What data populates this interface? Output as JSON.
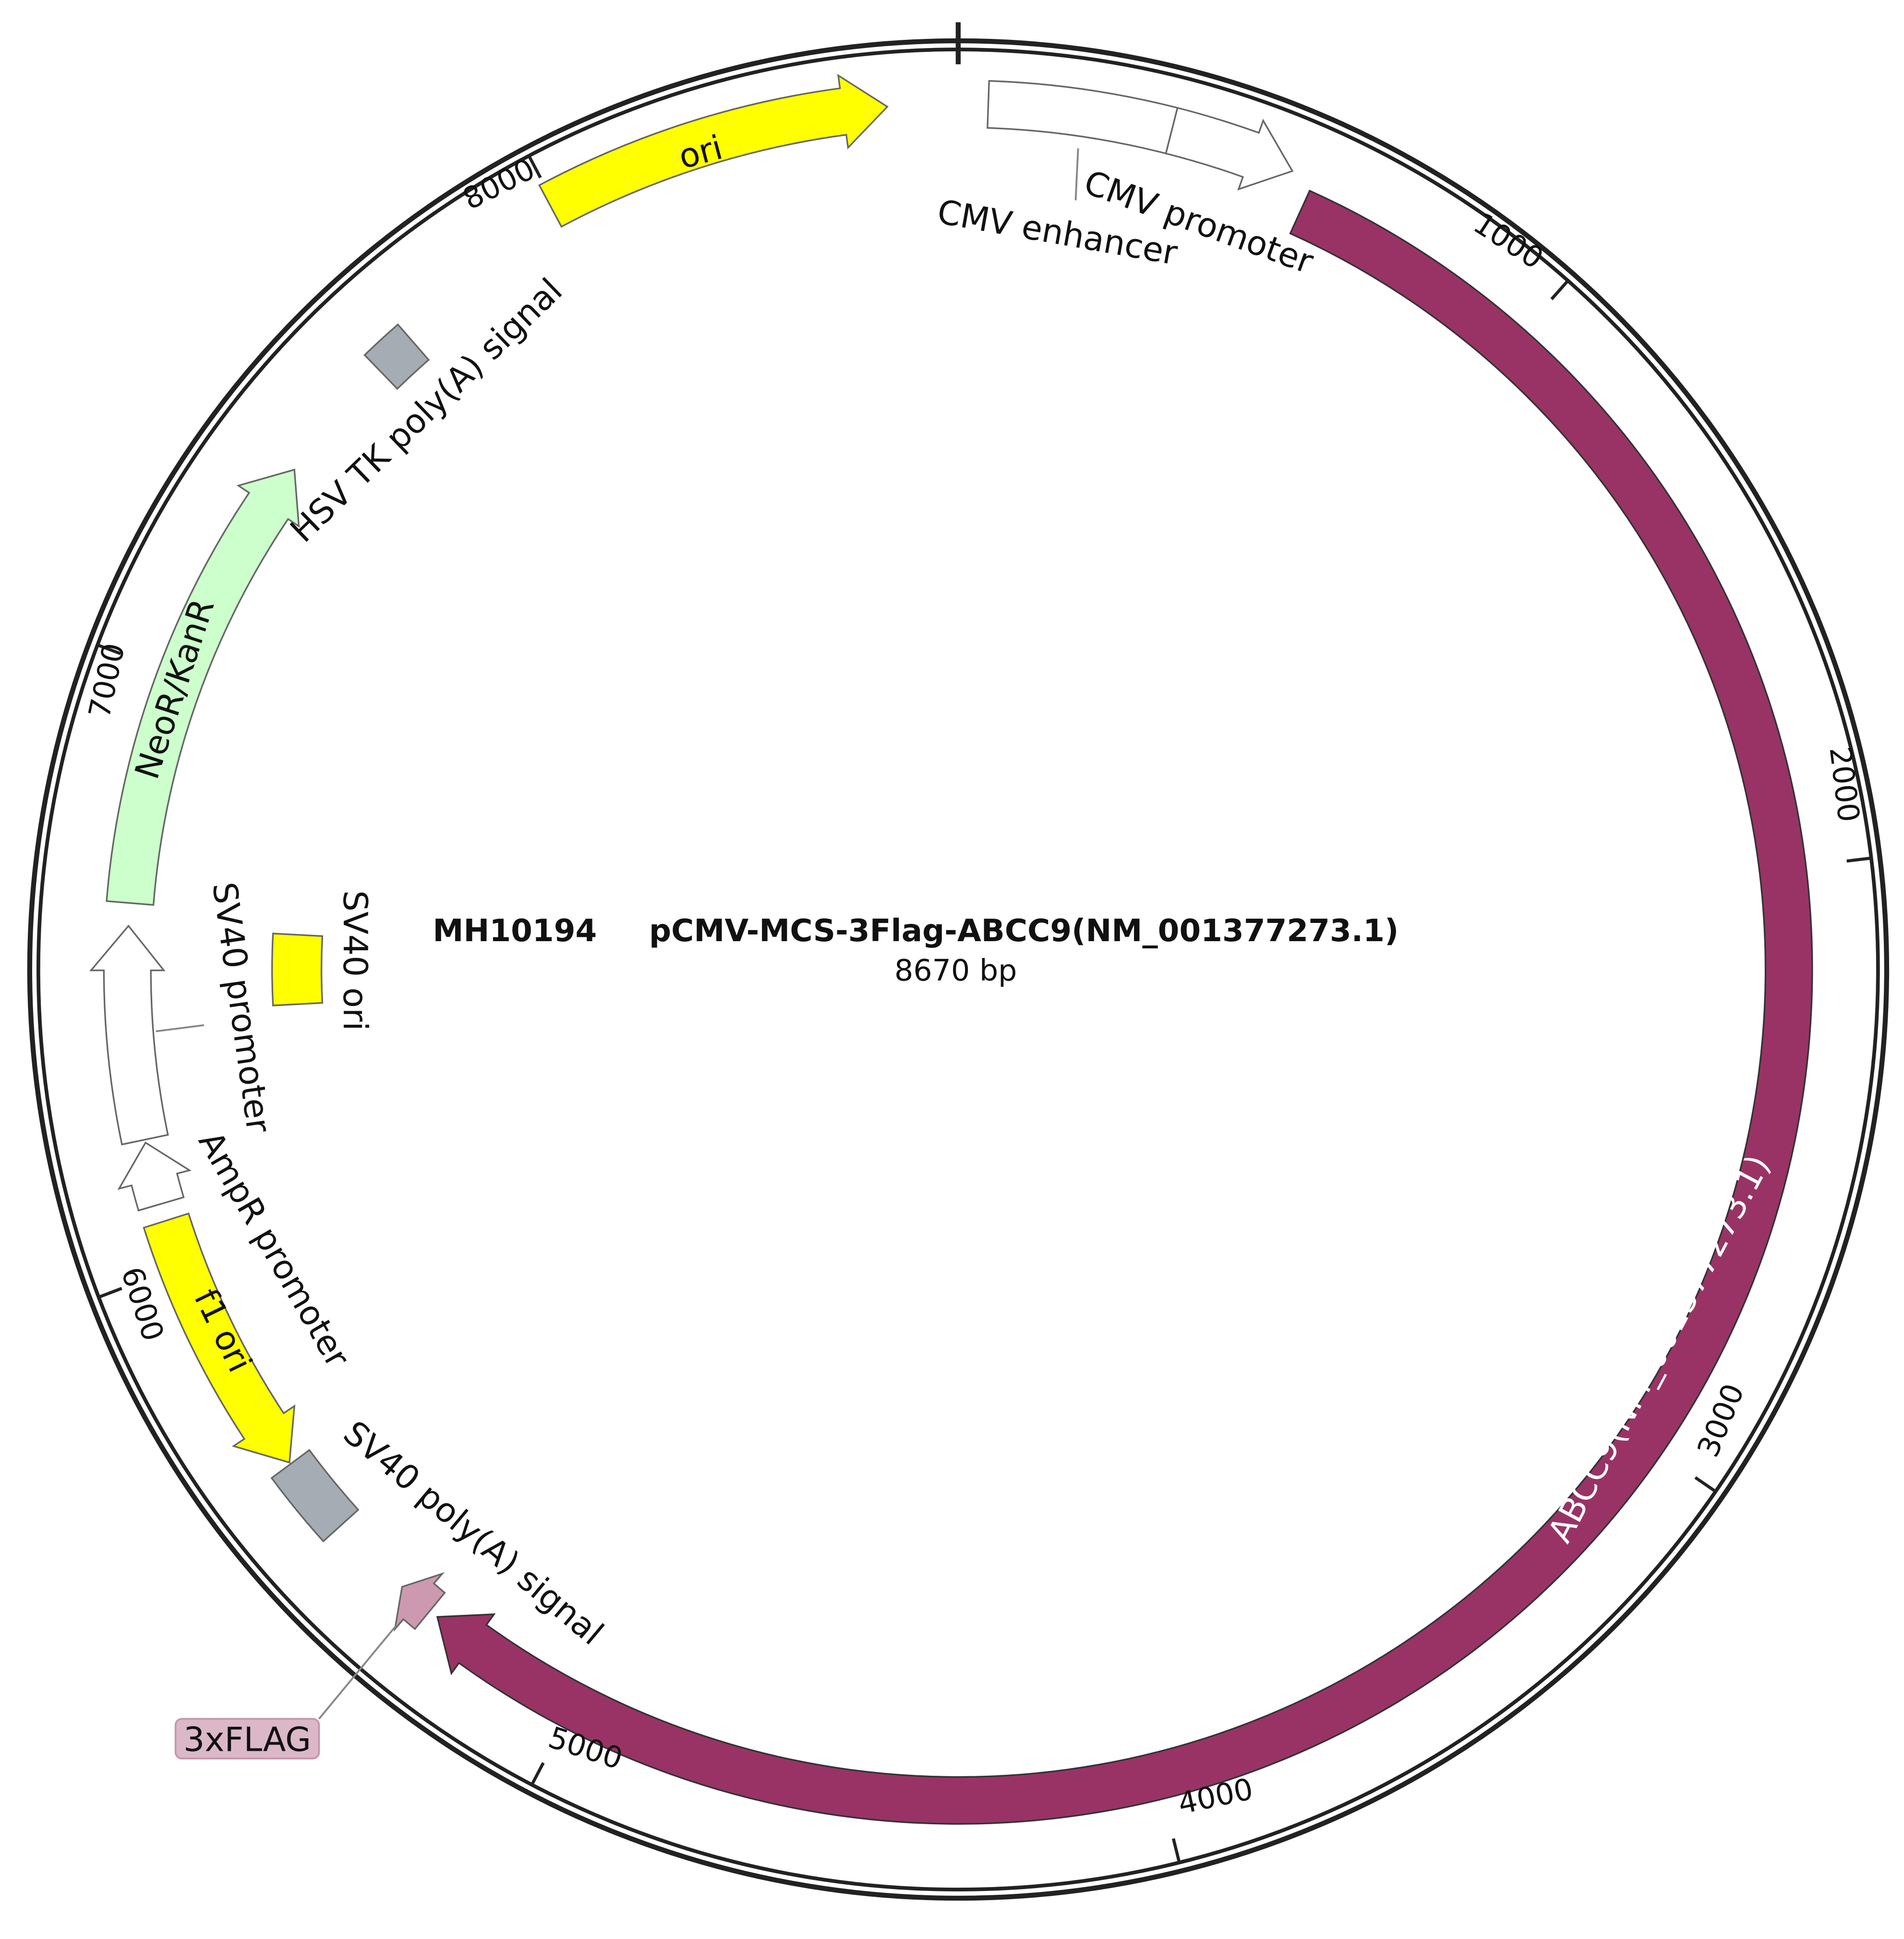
{
  "plasmid": {
    "id": "MH10194",
    "name": "pCMV-MCS-3Flag-ABCC9(NM_001377273.1)",
    "length_label": "8670 bp",
    "length_bp": 8670
  },
  "ticks": [
    {
      "bp": 1000,
      "label": "1000"
    },
    {
      "bp": 2000,
      "label": "2000"
    },
    {
      "bp": 3000,
      "label": "3000"
    },
    {
      "bp": 4000,
      "label": "4000"
    },
    {
      "bp": 5000,
      "label": "5000"
    },
    {
      "bp": 6000,
      "label": "6000"
    },
    {
      "bp": 7000,
      "label": "7000"
    },
    {
      "bp": 8000,
      "label": "8000"
    }
  ],
  "features": [
    {
      "key": "cmv_enhancer",
      "label": "CMV enhancer",
      "start": 48,
      "end": 344,
      "direction": "none",
      "color": "#ffffff",
      "track": "outer"
    },
    {
      "key": "cmv_promoter",
      "label": "CMV promoter",
      "start": 344,
      "end": 547,
      "direction": "forward",
      "color": "#ffffff",
      "track": "outer"
    },
    {
      "key": "abcc9",
      "label": "ABCC9(NM_001377273.1)",
      "start": 585,
      "end": 5270,
      "direction": "forward",
      "color": "#993366",
      "track": "main"
    },
    {
      "key": "flag",
      "label": "3xFLAG",
      "start": 5286,
      "end": 5347,
      "direction": "forward",
      "color": "#cc99b1",
      "track": "main"
    },
    {
      "key": "sv40_polya",
      "label": "SV40 poly(A) signal",
      "start": 5491,
      "end": 5623,
      "direction": "none",
      "color": "#a6acb3",
      "track": "main"
    },
    {
      "key": "f1_ori",
      "label": "f1 ori",
      "start": 5626,
      "end": 6079,
      "direction": "reverse",
      "color": "#ffff00",
      "track": "main"
    },
    {
      "key": "ampr_promoter",
      "label": "AmpR promoter",
      "start": 6108,
      "end": 6213,
      "direction": "forward",
      "color": "#ffffff",
      "track": "main"
    },
    {
      "key": "sv40_promoter",
      "label": "SV40 promoter",
      "start": 6218,
      "end": 6575,
      "direction": "forward",
      "color": "#ffffff",
      "track": "main"
    },
    {
      "key": "sv40_ori",
      "label": "SV40 ori",
      "start": 6430,
      "end": 6575,
      "direction": "none",
      "color": "#ffff00",
      "track": "inner"
    },
    {
      "key": "neor",
      "label": "NeoR/KanR",
      "start": 6613,
      "end": 7393,
      "direction": "forward",
      "color": "#ccffcc",
      "track": "main"
    },
    {
      "key": "hsv_tk_polya",
      "label": "HSV TK poly(A) signal",
      "start": 7610,
      "end": 7683,
      "direction": "none",
      "color": "#a6acb3",
      "track": "main"
    },
    {
      "key": "ori",
      "label": "ori",
      "start": 7993,
      "end": 8557,
      "direction": "forward",
      "color": "#ffff00",
      "track": "outer"
    }
  ]
}
